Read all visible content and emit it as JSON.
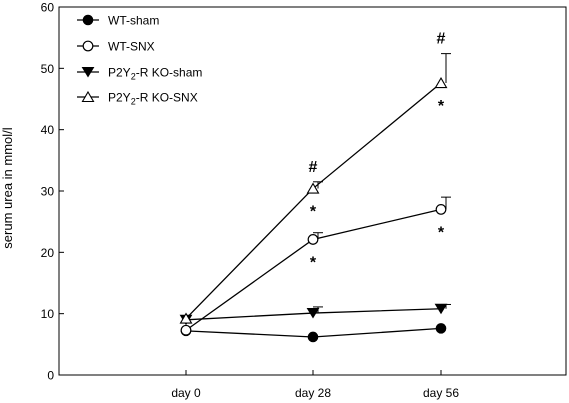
{
  "chart_data": {
    "type": "line",
    "ylabel": "serum urea in mmol/l",
    "xlabel": "",
    "categories": [
      "day 0",
      "day 28",
      "day 56"
    ],
    "ylim": [
      0,
      60
    ],
    "yticks": [
      "0",
      "10",
      "20",
      "30",
      "40",
      "50",
      "60"
    ],
    "legend_position": "top-left",
    "series": [
      {
        "name": "WT-sham",
        "marker": "filled-circle",
        "values": [
          7.2,
          6.2,
          7.6
        ],
        "err": [
          0,
          0,
          0
        ]
      },
      {
        "name": "WT-SNX",
        "marker": "open-circle",
        "values": [
          7.3,
          22.1,
          27.0
        ],
        "err": [
          0,
          1.1,
          2.0
        ]
      },
      {
        "name": "P2Y2-R KO-sham",
        "marker": "filled-triangle-down",
        "values": [
          9.0,
          10.1,
          10.8
        ],
        "err": [
          0,
          1.0,
          0.7
        ]
      },
      {
        "name": "P2Y2-R KO-SNX",
        "marker": "open-triangle-up",
        "values": [
          9.2,
          30.4,
          47.6
        ],
        "err": [
          0,
          1.1,
          4.8
        ]
      }
    ],
    "annotations": [
      {
        "text": "#",
        "x": "day 28",
        "series": "P2Y2-R KO-SNX",
        "position": "above"
      },
      {
        "text": "*",
        "x": "day 28",
        "series": "P2Y2-R KO-SNX",
        "position": "below"
      },
      {
        "text": "*",
        "x": "day 28",
        "series": "WT-SNX",
        "position": "below"
      },
      {
        "text": "#",
        "x": "day 56",
        "series": "P2Y2-R KO-SNX",
        "position": "above"
      },
      {
        "text": "*",
        "x": "day 56",
        "series": "P2Y2-R KO-SNX",
        "position": "below"
      },
      {
        "text": "*",
        "x": "day 56",
        "series": "WT-SNX",
        "position": "below"
      }
    ]
  },
  "legend": {
    "items": [
      {
        "label": "WT-sham"
      },
      {
        "label": "WT-SNX"
      },
      {
        "label_main": "P2Y",
        "label_sub": "2",
        "label_rest": "-R KO-sham"
      },
      {
        "label_main": "P2Y",
        "label_sub": "2",
        "label_rest": "-R KO-SNX"
      }
    ]
  }
}
